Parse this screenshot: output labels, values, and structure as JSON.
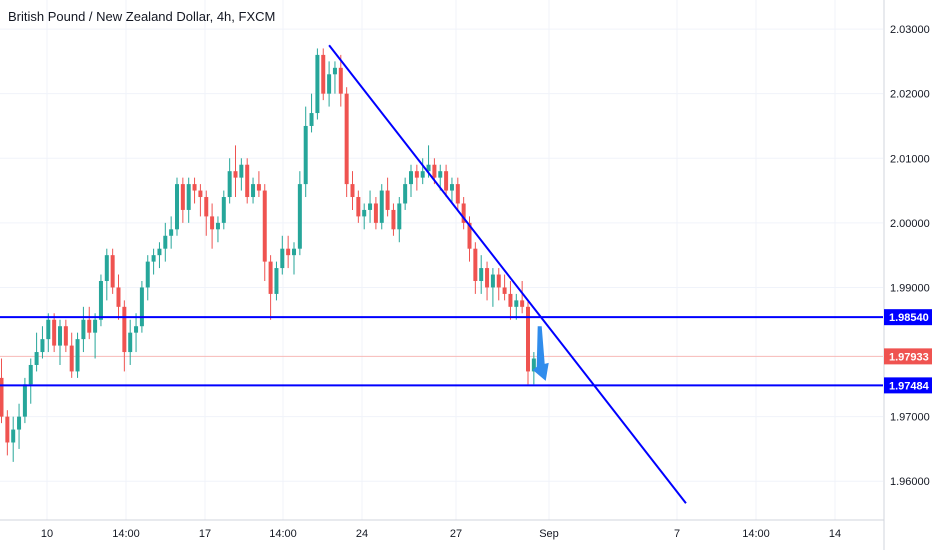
{
  "header": {
    "title": "British Pound / New Zealand Dollar, 4h, FXCM"
  },
  "colors": {
    "up": "#26a69a",
    "down": "#ef5350",
    "drawing": "#0000ff",
    "arrow": "#2f8cec",
    "grid": "#f0f3fa",
    "axis_line": "#d1d4dc",
    "current_line": "#f7b9b7"
  },
  "chart_data": {
    "type": "candlestick",
    "symbol": "British Pound / New Zealand Dollar",
    "timeframe": "4h",
    "source": "FXCM",
    "ylim": [
      1.954,
      2.0345
    ],
    "y_ticks": [
      "2.03000",
      "2.02000",
      "2.01000",
      "2.00000",
      "1.99000",
      "1.97000",
      "1.96000"
    ],
    "x_ticks": [
      "10",
      "14:00",
      "17",
      "14:00",
      "24",
      "27",
      "Sep",
      "7",
      "14:00",
      "14"
    ],
    "price_labels": [
      {
        "value": "1.98540",
        "kind": "resistance"
      },
      {
        "value": "1.97933",
        "kind": "current"
      },
      {
        "value": "1.97484",
        "kind": "support"
      }
    ],
    "horizontal_lines": [
      1.9854,
      1.97484
    ],
    "current_price": 1.97933,
    "trendline": {
      "from": {
        "bar": 56,
        "price": 2.0275
      },
      "to": {
        "bar": 117,
        "price": 1.9566
      }
    },
    "down_arrow": {
      "bar": 92,
      "from_price": 1.984,
      "to_price": 1.976
    },
    "candles": [
      [
        1.976,
        1.979,
        1.969,
        1.97
      ],
      [
        1.97,
        1.971,
        1.964,
        1.966
      ],
      [
        1.966,
        1.97,
        1.963,
        1.968
      ],
      [
        1.968,
        1.972,
        1.965,
        1.97
      ],
      [
        1.97,
        1.976,
        1.969,
        1.975
      ],
      [
        1.975,
        1.979,
        1.972,
        1.978
      ],
      [
        1.978,
        1.983,
        1.977,
        1.98
      ],
      [
        1.98,
        1.984,
        1.979,
        1.982
      ],
      [
        1.982,
        1.986,
        1.98,
        1.985
      ],
      [
        1.985,
        1.986,
        1.98,
        1.981
      ],
      [
        1.981,
        1.985,
        1.978,
        1.984
      ],
      [
        1.984,
        1.985,
        1.98,
        1.981
      ],
      [
        1.981,
        1.983,
        1.976,
        1.977
      ],
      [
        1.977,
        1.983,
        1.976,
        1.982
      ],
      [
        1.982,
        1.987,
        1.98,
        1.985
      ],
      [
        1.985,
        1.987,
        1.982,
        1.983
      ],
      [
        1.983,
        1.986,
        1.979,
        1.985
      ],
      [
        1.985,
        1.992,
        1.984,
        1.991
      ],
      [
        1.991,
        1.996,
        1.988,
        1.995
      ],
      [
        1.995,
        1.996,
        1.989,
        1.99
      ],
      [
        1.99,
        1.992,
        1.985,
        1.987
      ],
      [
        1.987,
        1.988,
        1.977,
        1.98
      ],
      [
        1.98,
        1.985,
        1.978,
        1.983
      ],
      [
        1.983,
        1.986,
        1.98,
        1.984
      ],
      [
        1.984,
        1.991,
        1.983,
        1.99
      ],
      [
        1.99,
        1.995,
        1.988,
        1.994
      ],
      [
        1.994,
        1.996,
        1.992,
        1.995
      ],
      [
        1.995,
        1.997,
        1.993,
        1.996
      ],
      [
        1.996,
        2.0,
        1.994,
        1.998
      ],
      [
        1.998,
        2.001,
        1.996,
        1.999
      ],
      [
        1.999,
        2.007,
        1.998,
        2.006
      ],
      [
        2.006,
        2.007,
        2.0,
        2.002
      ],
      [
        2.002,
        2.007,
        2.0,
        2.006
      ],
      [
        2.006,
        2.007,
        2.003,
        2.005
      ],
      [
        2.005,
        2.006,
        2.001,
        2.004
      ],
      [
        2.004,
        2.005,
        1.998,
        2.001
      ],
      [
        2.001,
        2.003,
        1.996,
        1.999
      ],
      [
        1.999,
        2.001,
        1.997,
        2.0
      ],
      [
        2.0,
        2.005,
        1.999,
        2.004
      ],
      [
        2.004,
        2.01,
        2.003,
        2.008
      ],
      [
        2.008,
        2.012,
        2.004,
        2.007
      ],
      [
        2.007,
        2.01,
        2.005,
        2.009
      ],
      [
        2.009,
        2.01,
        2.003,
        2.004
      ],
      [
        2.004,
        2.007,
        2.003,
        2.006
      ],
      [
        2.006,
        2.008,
        2.004,
        2.005
      ],
      [
        2.005,
        2.006,
        1.991,
        1.994
      ],
      [
        1.994,
        1.995,
        1.985,
        1.989
      ],
      [
        1.989,
        1.994,
        1.988,
        1.993
      ],
      [
        1.993,
        1.998,
        1.992,
        1.996
      ],
      [
        1.996,
        1.998,
        1.993,
        1.995
      ],
      [
        1.995,
        1.997,
        1.992,
        1.996
      ],
      [
        1.996,
        2.008,
        1.995,
        2.006
      ],
      [
        2.006,
        2.018,
        2.004,
        2.015
      ],
      [
        2.015,
        2.02,
        2.014,
        2.017
      ],
      [
        2.017,
        2.027,
        2.016,
        2.026
      ],
      [
        2.026,
        2.027,
        2.019,
        2.02
      ],
      [
        2.02,
        2.025,
        2.018,
        2.023
      ],
      [
        2.023,
        2.025,
        2.02,
        2.024
      ],
      [
        2.024,
        2.026,
        2.018,
        2.02
      ],
      [
        2.02,
        2.021,
        2.004,
        2.006
      ],
      [
        2.006,
        2.008,
        2.002,
        2.004
      ],
      [
        2.004,
        2.005,
        2.0,
        2.001
      ],
      [
        2.001,
        2.003,
        1.999,
        2.002
      ],
      [
        2.002,
        2.005,
        2.0,
        2.003
      ],
      [
        2.003,
        2.004,
        1.999,
        2.0
      ],
      [
        2.0,
        2.006,
        1.999,
        2.005
      ],
      [
        2.005,
        2.007,
        2.001,
        2.002
      ],
      [
        2.002,
        2.003,
        1.998,
        1.999
      ],
      [
        1.999,
        2.004,
        1.997,
        2.003
      ],
      [
        2.003,
        2.007,
        2.002,
        2.006
      ],
      [
        2.006,
        2.009,
        2.004,
        2.008
      ],
      [
        2.008,
        2.009,
        2.005,
        2.007
      ],
      [
        2.007,
        2.01,
        2.006,
        2.008
      ],
      [
        2.008,
        2.012,
        2.007,
        2.009
      ],
      [
        2.009,
        2.01,
        2.006,
        2.007
      ],
      [
        2.007,
        2.009,
        2.005,
        2.008
      ],
      [
        2.008,
        2.009,
        2.004,
        2.005
      ],
      [
        2.005,
        2.007,
        2.003,
        2.006
      ],
      [
        2.006,
        2.007,
        2.002,
        2.003
      ],
      [
        2.003,
        2.004,
        1.999,
        2.0
      ],
      [
        2.0,
        2.001,
        1.994,
        1.996
      ],
      [
        1.996,
        1.997,
        1.989,
        1.991
      ],
      [
        1.991,
        1.995,
        1.989,
        1.993
      ],
      [
        1.993,
        1.994,
        1.988,
        1.99
      ],
      [
        1.99,
        1.993,
        1.987,
        1.992
      ],
      [
        1.992,
        1.993,
        1.988,
        1.99
      ],
      [
        1.99,
        1.992,
        1.988,
        1.989
      ],
      [
        1.989,
        1.991,
        1.985,
        1.987
      ],
      [
        1.987,
        1.989,
        1.985,
        1.988
      ],
      [
        1.988,
        1.991,
        1.986,
        1.987
      ],
      [
        1.987,
        1.988,
        1.975,
        1.977
      ],
      [
        1.977,
        1.98,
        1.975,
        1.979
      ],
      [
        1.979,
        1.982,
        1.978,
        1.9793
      ]
    ]
  }
}
